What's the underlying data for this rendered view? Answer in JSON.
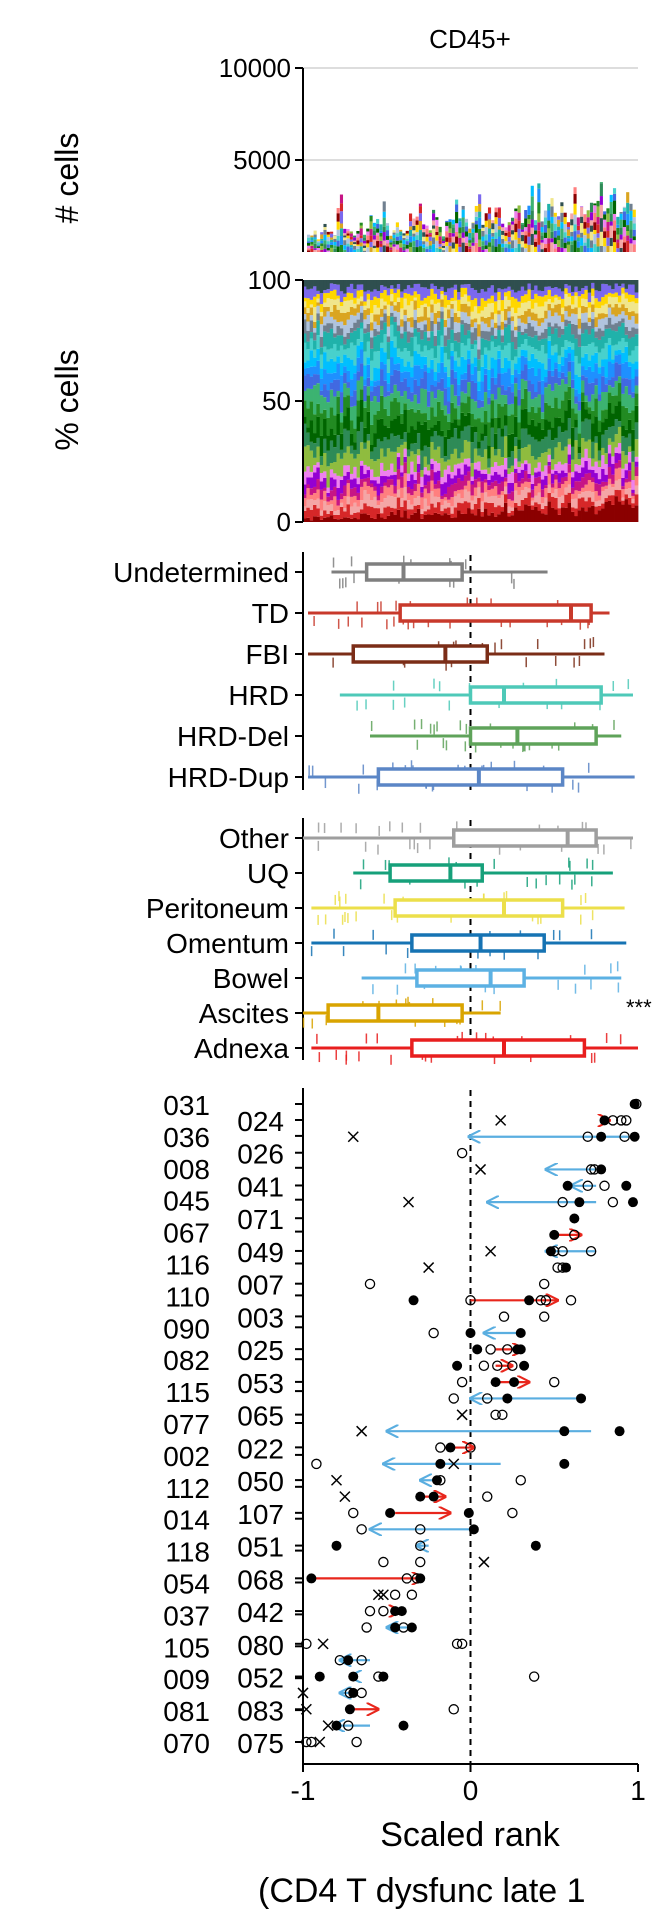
{
  "colors": {
    "ink": "#000000",
    "grid": "#dddddd",
    "shift_up": "#e8261c",
    "shift_down": "#5aaee0",
    "stack_palette": [
      "#8b0000",
      "#d62728",
      "#f4a6a6",
      "#ff7f7f",
      "#c71585",
      "#9400d3",
      "#ee82ee",
      "#8fbc3f",
      "#2e8b57",
      "#006400",
      "#228b22",
      "#3cb371",
      "#4169e1",
      "#1e90ff",
      "#00bfff",
      "#48d1cc",
      "#20b2aa",
      "#708090",
      "#b0c4de",
      "#daa520",
      "#f0e68c",
      "#ffd700",
      "#7b68ee",
      "#2f4f4f"
    ]
  },
  "chart_data": [
    {
      "id": "counts",
      "type": "bar",
      "title": "CD45+",
      "ylabel": "# cells",
      "ylim": [
        0,
        10000
      ],
      "yticks": [
        5000,
        10000
      ],
      "grid": true,
      "n_samples": 100,
      "values_approx": "per-sample stacked cell counts, mostly 300-3500, max about 3800"
    },
    {
      "id": "composition",
      "type": "bar",
      "ylabel": "% cells",
      "ylim": [
        0,
        100
      ],
      "yticks": [
        0,
        50,
        100
      ],
      "n_samples": 100,
      "stacked": true
    },
    {
      "id": "signature",
      "type": "box",
      "xlim": [
        -1,
        1
      ],
      "reference_line": 0,
      "groups": [
        {
          "label": "Undetermined",
          "color": "#7f7f7f",
          "whislo": -0.83,
          "q1": -0.62,
          "median": -0.4,
          "q3": -0.05,
          "whishi": 0.46
        },
        {
          "label": "TD",
          "color": "#c8392b",
          "whislo": -0.97,
          "q1": -0.42,
          "median": 0.6,
          "q3": 0.72,
          "whishi": 0.83
        },
        {
          "label": "FBI",
          "color": "#7b2d17",
          "whislo": -0.97,
          "q1": -0.7,
          "median": -0.15,
          "q3": 0.1,
          "whishi": 0.8
        },
        {
          "label": "HRD",
          "color": "#4ec9b8",
          "whislo": -0.78,
          "q1": 0.0,
          "median": 0.2,
          "q3": 0.78,
          "whishi": 0.97
        },
        {
          "label": "HRD-Del",
          "color": "#5fa35a",
          "whislo": -0.6,
          "q1": 0.0,
          "median": 0.28,
          "q3": 0.75,
          "whishi": 0.9
        },
        {
          "label": "HRD-Dup",
          "color": "#5b86c6",
          "whislo": -0.97,
          "q1": -0.55,
          "median": 0.05,
          "q3": 0.55,
          "whishi": 0.98
        }
      ]
    },
    {
      "id": "site",
      "type": "box",
      "xlim": [
        -1,
        1
      ],
      "reference_line": 0,
      "annotation": "***",
      "annotation_group": "Ascites",
      "groups": [
        {
          "label": "Other",
          "color": "#9e9e9e",
          "whislo": -1.0,
          "q1": -0.1,
          "median": 0.58,
          "q3": 0.75,
          "whishi": 0.97
        },
        {
          "label": "UQ",
          "color": "#16a07a",
          "whislo": -0.7,
          "q1": -0.48,
          "median": -0.12,
          "q3": 0.07,
          "whishi": 0.85
        },
        {
          "label": "Peritoneum",
          "color": "#ecdf4a",
          "whislo": -0.95,
          "q1": -0.45,
          "median": 0.2,
          "q3": 0.55,
          "whishi": 0.92
        },
        {
          "label": "Omentum",
          "color": "#1673b3",
          "whislo": -0.95,
          "q1": -0.35,
          "median": 0.06,
          "q3": 0.44,
          "whishi": 0.93
        },
        {
          "label": "Bowel",
          "color": "#5cb1e3",
          "whislo": -0.65,
          "q1": -0.32,
          "median": 0.12,
          "q3": 0.32,
          "whishi": 0.9
        },
        {
          "label": "Ascites",
          "color": "#d9a400",
          "whislo": -1.0,
          "q1": -0.85,
          "median": -0.55,
          "q3": -0.05,
          "whishi": 0.18
        },
        {
          "label": "Adnexa",
          "color": "#e81e1e",
          "whislo": -0.95,
          "q1": -0.35,
          "median": 0.2,
          "q3": 0.68,
          "whishi": 1.0
        }
      ]
    },
    {
      "id": "patients",
      "type": "scatter",
      "xlim": [
        -1,
        1
      ],
      "xticks": [
        -1,
        0,
        1
      ],
      "xtick_labels": [
        "-1",
        "0",
        "1"
      ],
      "xlabel_line1": "Scaled rank",
      "xlabel_line2": "(CD4 T dysfunc late 1",
      "reference_line": 0,
      "patients_left": [
        "031",
        "036",
        "008",
        "045",
        "067",
        "116",
        "110",
        "090",
        "082",
        "115",
        "077",
        "002",
        "112",
        "014",
        "118",
        "054",
        "037",
        "105",
        "009",
        "081",
        "070"
      ],
      "patients_right": [
        "024",
        "026",
        "041",
        "071",
        "049",
        "007",
        "003",
        "025",
        "053",
        "065",
        "022",
        "050",
        "107",
        "051",
        "068",
        "042",
        "080",
        "052",
        "083",
        "075"
      ],
      "rows": [
        {
          "patient": "031",
          "filled": [
            0.98
          ],
          "open": [
            0.99
          ]
        },
        {
          "patient": "024",
          "filled": [
            0.8
          ],
          "open": [
            0.85,
            0.9,
            0.93
          ],
          "cross": [
            0.18
          ],
          "arrow": [
            0.8,
            0.83
          ]
        },
        {
          "patient": "036",
          "filled": [
            0.98,
            0.78
          ],
          "open": [
            0.7,
            0.92
          ],
          "cross": [
            -0.7
          ],
          "arrow": [
            0.95,
            -0.01
          ]
        },
        {
          "patient": "008",
          "filled": [],
          "open": [
            -0.05
          ],
          "cross": []
        },
        {
          "patient": "041",
          "filled": [
            0.78
          ],
          "open": [
            0.74,
            0.72
          ],
          "cross": [
            0.06
          ],
          "arrow": [
            0.75,
            0.45
          ]
        },
        {
          "patient": "045",
          "filled": [
            0.93,
            0.58
          ],
          "open": [
            0.7,
            0.8
          ],
          "cross": [],
          "arrow": [
            0.75,
            0.6
          ]
        },
        {
          "patient": "071",
          "filled": [
            0.65,
            0.97
          ],
          "open": [
            0.55,
            0.85
          ],
          "cross": [
            -0.37
          ],
          "arrow": [
            0.75,
            0.1
          ]
        },
        {
          "patient": "067",
          "filled": [
            0.62
          ],
          "open": [],
          "cross": []
        },
        {
          "patient": "049",
          "filled": [
            0.5
          ],
          "open": [
            0.62
          ],
          "cross": [],
          "arrow": [
            0.5,
            0.66
          ]
        },
        {
          "patient": "116",
          "filled": [
            0.48
          ],
          "open": [
            0.55,
            0.72,
            0.5
          ],
          "cross": [
            0.12
          ],
          "arrow": [
            0.75,
            0.45
          ]
        },
        {
          "patient": "007",
          "filled": [
            0.57
          ],
          "open": [
            0.55,
            0.52
          ],
          "cross": [
            -0.25
          ]
        },
        {
          "patient": "110",
          "filled": [],
          "open": [
            -0.6,
            0.44
          ],
          "cross": []
        },
        {
          "patient": "003",
          "filled": [
            -0.34,
            0.35
          ],
          "open": [
            0.45,
            0.42,
            0.0,
            0.6
          ],
          "cross": [],
          "arrow": [
            0.0,
            0.52
          ]
        },
        {
          "patient": "090",
          "filled": [],
          "open": [
            0.2,
            0.44
          ],
          "cross": []
        },
        {
          "patient": "025",
          "filled": [
            0.3,
            0.0
          ],
          "open": [
            -0.22
          ],
          "cross": [],
          "arrow": [
            0.3,
            0.08
          ]
        },
        {
          "patient": "082",
          "filled": [
            0.04,
            0.28,
            0.3
          ],
          "open": [
            0.12,
            0.22
          ],
          "cross": [],
          "arrow": [
            0.15,
            0.32
          ]
        },
        {
          "patient": "053",
          "filled": [
            -0.08,
            0.32
          ],
          "open": [
            0.25,
            0.08,
            0.16
          ],
          "cross": [],
          "arrow": [
            0.15,
            0.25
          ]
        },
        {
          "patient": "115",
          "filled": [
            0.15,
            0.26
          ],
          "open": [
            -0.05,
            0.5
          ],
          "cross": [],
          "arrow": [
            0.15,
            0.35
          ]
        },
        {
          "patient": "065",
          "filled": [
            0.22,
            0.66
          ],
          "open": [
            -0.1,
            0.1
          ],
          "cross": [],
          "arrow": [
            0.66,
            0.0
          ]
        },
        {
          "patient": "077",
          "filled": [],
          "open": [
            0.15,
            0.19
          ],
          "cross": [
            -0.05
          ]
        },
        {
          "patient": "022",
          "filled": [
            0.56,
            0.89
          ],
          "open": [],
          "cross": [
            -0.65
          ],
          "arrow": [
            0.72,
            -0.5
          ]
        },
        {
          "patient": "002",
          "filled": [
            -0.12
          ],
          "open": [
            0.0,
            -0.18
          ],
          "cross": [],
          "arrow": [
            -0.15,
            0.02
          ]
        },
        {
          "patient": "050",
          "filled": [
            -0.18,
            0.56
          ],
          "open": [
            -0.92
          ],
          "cross": [
            -0.1
          ],
          "arrow": [
            0.18,
            -0.52
          ]
        },
        {
          "patient": "112",
          "filled": [
            -0.2
          ],
          "open": [
            -0.18,
            0.3
          ],
          "cross": [
            -0.8
          ],
          "arrow": [
            -0.22,
            -0.3
          ]
        },
        {
          "patient": "107",
          "filled": [
            -0.3,
            -0.22
          ],
          "open": [
            0.1
          ],
          "cross": [
            -0.75
          ],
          "arrow": [
            -0.3,
            -0.15
          ]
        },
        {
          "patient": "014",
          "filled": [
            -0.48,
            -0.01
          ],
          "open": [
            -0.7,
            0.25
          ],
          "cross": [],
          "arrow": [
            -0.45,
            -0.12
          ]
        },
        {
          "patient": "051",
          "filled": [
            0.02
          ],
          "open": [
            -0.3,
            -0.65
          ],
          "cross": [],
          "arrow": [
            0.0,
            -0.6
          ]
        },
        {
          "patient": "118",
          "filled": [
            -0.8,
            0.39
          ],
          "open": [
            -0.3
          ],
          "cross": [],
          "arrow": [
            -0.25,
            -0.32
          ]
        },
        {
          "patient": "068",
          "filled": [],
          "open": [
            -0.52,
            -0.3
          ],
          "cross": [
            0.08
          ]
        },
        {
          "patient": "054",
          "filled": [
            -0.95,
            -0.3
          ],
          "open": [
            -0.32,
            -0.38
          ],
          "cross": [],
          "arrow": [
            -0.95,
            -0.28
          ]
        },
        {
          "patient": "042",
          "filled": [],
          "open": [
            -0.35,
            -0.45
          ],
          "cross": [
            -0.55,
            -0.52
          ]
        },
        {
          "patient": "037",
          "filled": [
            -0.45,
            -0.41
          ],
          "open": [
            -0.6,
            -0.52
          ],
          "cross": [],
          "arrow": [
            -0.45,
            -0.42
          ]
        },
        {
          "patient": "080",
          "filled": [
            -0.45,
            -0.35
          ],
          "open": [
            -0.62,
            -0.4
          ],
          "cross": [],
          "arrow": [
            -0.35,
            -0.5
          ]
        },
        {
          "patient": "105",
          "filled": [],
          "open": [
            -0.98,
            -0.05,
            -0.08
          ],
          "cross": [
            -0.88
          ]
        },
        {
          "patient": "052",
          "filled": [
            -0.73
          ],
          "open": [
            -0.78,
            -0.65
          ],
          "cross": [],
          "arrow": [
            -0.6,
            -0.78
          ]
        },
        {
          "patient": "009",
          "filled": [
            -0.9,
            -0.7,
            -0.52
          ],
          "open": [
            -0.55,
            0.38
          ],
          "cross": [],
          "arrow": [
            -0.7,
            -0.72
          ]
        },
        {
          "patient": "083",
          "filled": [
            -0.7
          ],
          "open": [
            -0.65,
            -0.72
          ],
          "cross": [
            -1.0
          ],
          "arrow": [
            -0.68,
            -0.78
          ]
        },
        {
          "patient": "081",
          "filled": [
            -0.72
          ],
          "open": [
            -0.1
          ],
          "cross": [
            -0.98
          ],
          "arrow": [
            -0.72,
            -0.55
          ]
        },
        {
          "patient": "075",
          "filled": [
            -0.8,
            -0.4
          ],
          "open": [
            -0.73
          ],
          "cross": [
            -0.85
          ],
          "arrow": [
            -0.6,
            -0.82
          ]
        },
        {
          "patient": "070",
          "filled": [],
          "open": [
            -0.98,
            -0.95,
            -0.68
          ],
          "cross": [
            -0.9
          ]
        }
      ]
    }
  ]
}
